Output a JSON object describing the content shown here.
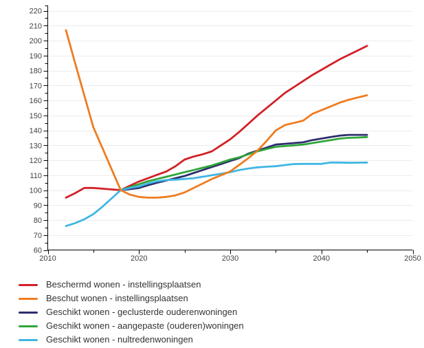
{
  "colors": {
    "background": "#ffffff",
    "axis": "#000000",
    "grid": "#ececec",
    "tick_label": "#404040",
    "legend_text": "#333333"
  },
  "chart_data": {
    "type": "line",
    "title": "",
    "xlabel": "",
    "ylabel": "",
    "xlim": [
      2010,
      2050
    ],
    "ylim": [
      60,
      220
    ],
    "x_tick_labels": [
      "2010",
      "2020",
      "2030",
      "2040",
      "2050"
    ],
    "x_minor_tick_step": 5,
    "y_tick_step": 10,
    "y_minor_tick_step": 5,
    "grid": "horizontal-major-only",
    "legend_position": "bottom-left",
    "index_base": "2018 = 100",
    "series": [
      {
        "name": "Beschermd wonen - instellingsplaatsen",
        "color": "#d22027",
        "x": [
          2012,
          2013,
          2014,
          2015,
          2016,
          2017,
          2018,
          2019,
          2020,
          2021,
          2022,
          2023,
          2024,
          2025,
          2026,
          2027,
          2028,
          2029,
          2030,
          2031,
          2032,
          2033,
          2034,
          2035,
          2036,
          2037,
          2038,
          2039,
          2040,
          2041,
          2042,
          2043,
          2044,
          2045
        ],
        "values": [
          95,
          98,
          101.5,
          101.5,
          101,
          100.5,
          100,
          103,
          105.8,
          108,
          110.3,
          112.5,
          116,
          120.5,
          122.5,
          124,
          126,
          130,
          134,
          139,
          144.5,
          150,
          155,
          160,
          165,
          169,
          173,
          177,
          180.5,
          184,
          187.5,
          190.5,
          193.5,
          196.5
        ]
      },
      {
        "name": "Beschut wonen - instellingsplaatsen",
        "color": "#ee7c20",
        "x": [
          2012,
          2013,
          2014,
          2015,
          2016,
          2017,
          2018,
          2019,
          2020,
          2021,
          2022,
          2023,
          2024,
          2025,
          2026,
          2027,
          2028,
          2029,
          2030,
          2031,
          2032,
          2033,
          2034,
          2035,
          2036,
          2037,
          2038,
          2039,
          2040,
          2041,
          2042,
          2043,
          2044,
          2045
        ],
        "values": [
          207,
          185,
          163.5,
          142,
          128,
          114,
          100,
          97,
          95.5,
          95,
          95,
          95.5,
          96.5,
          98.5,
          101.5,
          104.5,
          107.5,
          110,
          112.5,
          117,
          121.5,
          126.5,
          133,
          140,
          143.5,
          145,
          146.5,
          151,
          153.5,
          156,
          158.5,
          160.5,
          162,
          163.5
        ]
      },
      {
        "name": "Geschikt wonen - geclusterde ouderenwoningen",
        "color": "#2c2d6e",
        "x": [
          2018,
          2019,
          2020,
          2021,
          2022,
          2023,
          2024,
          2025,
          2026,
          2027,
          2028,
          2029,
          2030,
          2031,
          2032,
          2033,
          2034,
          2035,
          2036,
          2037,
          2038,
          2039,
          2040,
          2041,
          2042,
          2043,
          2044,
          2045
        ],
        "values": [
          100,
          100.7,
          101.5,
          103.3,
          105,
          106.5,
          108,
          109.5,
          111.5,
          113.5,
          115.5,
          117.5,
          119.5,
          121.5,
          124.5,
          126.5,
          128.5,
          130.5,
          131,
          131.5,
          132,
          133.5,
          134.5,
          135.5,
          136.5,
          137,
          137,
          137
        ]
      },
      {
        "name": "Geschikt wonen - aangepaste (ouderen)woningen",
        "color": "#2fa53a",
        "x": [
          2018,
          2019,
          2020,
          2021,
          2022,
          2023,
          2024,
          2025,
          2026,
          2027,
          2028,
          2029,
          2030,
          2031,
          2032,
          2033,
          2034,
          2035,
          2036,
          2037,
          2038,
          2039,
          2040,
          2041,
          2042,
          2043,
          2044,
          2045
        ],
        "values": [
          100,
          102,
          104,
          106,
          107.5,
          109,
          110.5,
          112,
          113.5,
          115,
          116.5,
          118.5,
          120.5,
          122,
          124,
          126,
          127.5,
          129,
          129.5,
          130,
          130.5,
          131.5,
          132.5,
          133.5,
          134.5,
          135,
          135.2,
          135.5
        ]
      },
      {
        "name": "Geschikt wonen - nultredenwoningen",
        "color": "#3fb6e3",
        "x": [
          2012,
          2013,
          2014,
          2015,
          2016,
          2017,
          2018,
          2019,
          2020,
          2021,
          2022,
          2023,
          2024,
          2025,
          2026,
          2027,
          2028,
          2029,
          2030,
          2031,
          2032,
          2033,
          2034,
          2035,
          2036,
          2037,
          2038,
          2039,
          2040,
          2041,
          2042,
          2043,
          2044,
          2045
        ],
        "values": [
          76,
          78,
          80.5,
          84,
          89,
          94.5,
          100,
          101.5,
          102.5,
          104.5,
          106,
          106.8,
          107,
          107.5,
          108,
          109,
          110,
          111,
          112,
          113.5,
          114.5,
          115.3,
          115.7,
          116,
          116.8,
          117.5,
          117.6,
          117.6,
          117.6,
          118.5,
          118.5,
          118.3,
          118.4,
          118.5
        ]
      }
    ]
  }
}
